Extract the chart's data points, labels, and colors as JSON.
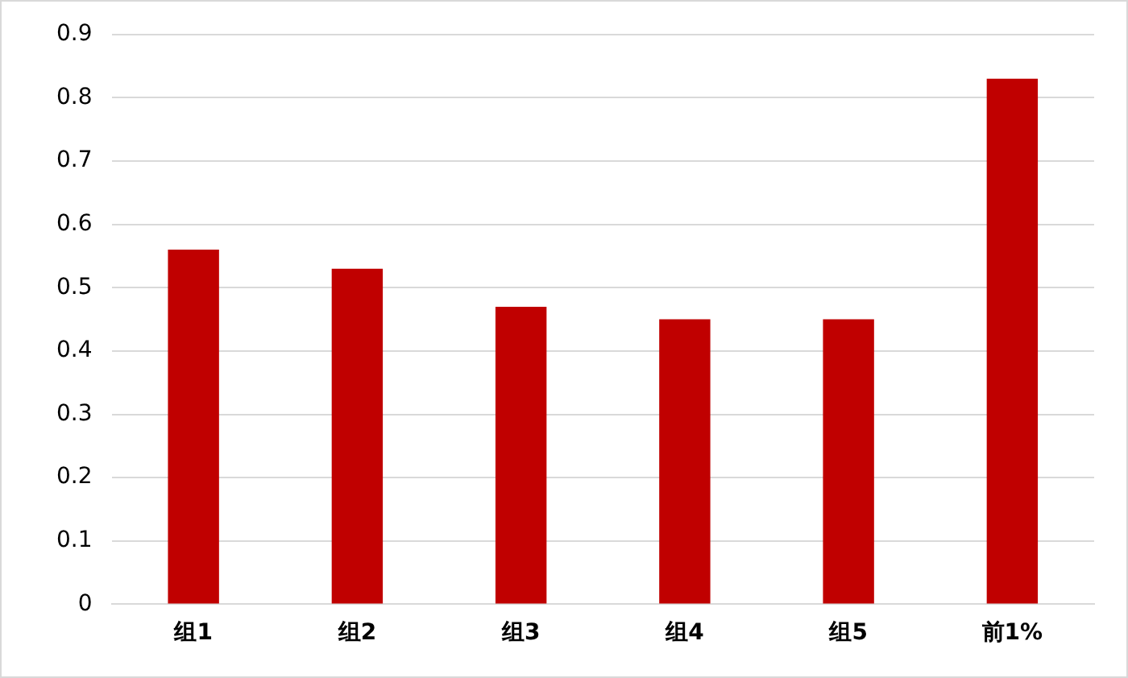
{
  "chart_data": {
    "type": "bar",
    "categories": [
      "组1",
      "组2",
      "组3",
      "组4",
      "组5",
      "前1%"
    ],
    "values": [
      0.56,
      0.53,
      0.47,
      0.45,
      0.45,
      0.83
    ],
    "color": "#c00000",
    "ylim": [
      0,
      0.9
    ],
    "yticks": [
      0,
      0.1,
      0.2,
      0.3,
      0.4,
      0.5,
      0.6,
      0.7,
      0.8,
      0.9
    ],
    "grid": "y",
    "legend": false
  }
}
